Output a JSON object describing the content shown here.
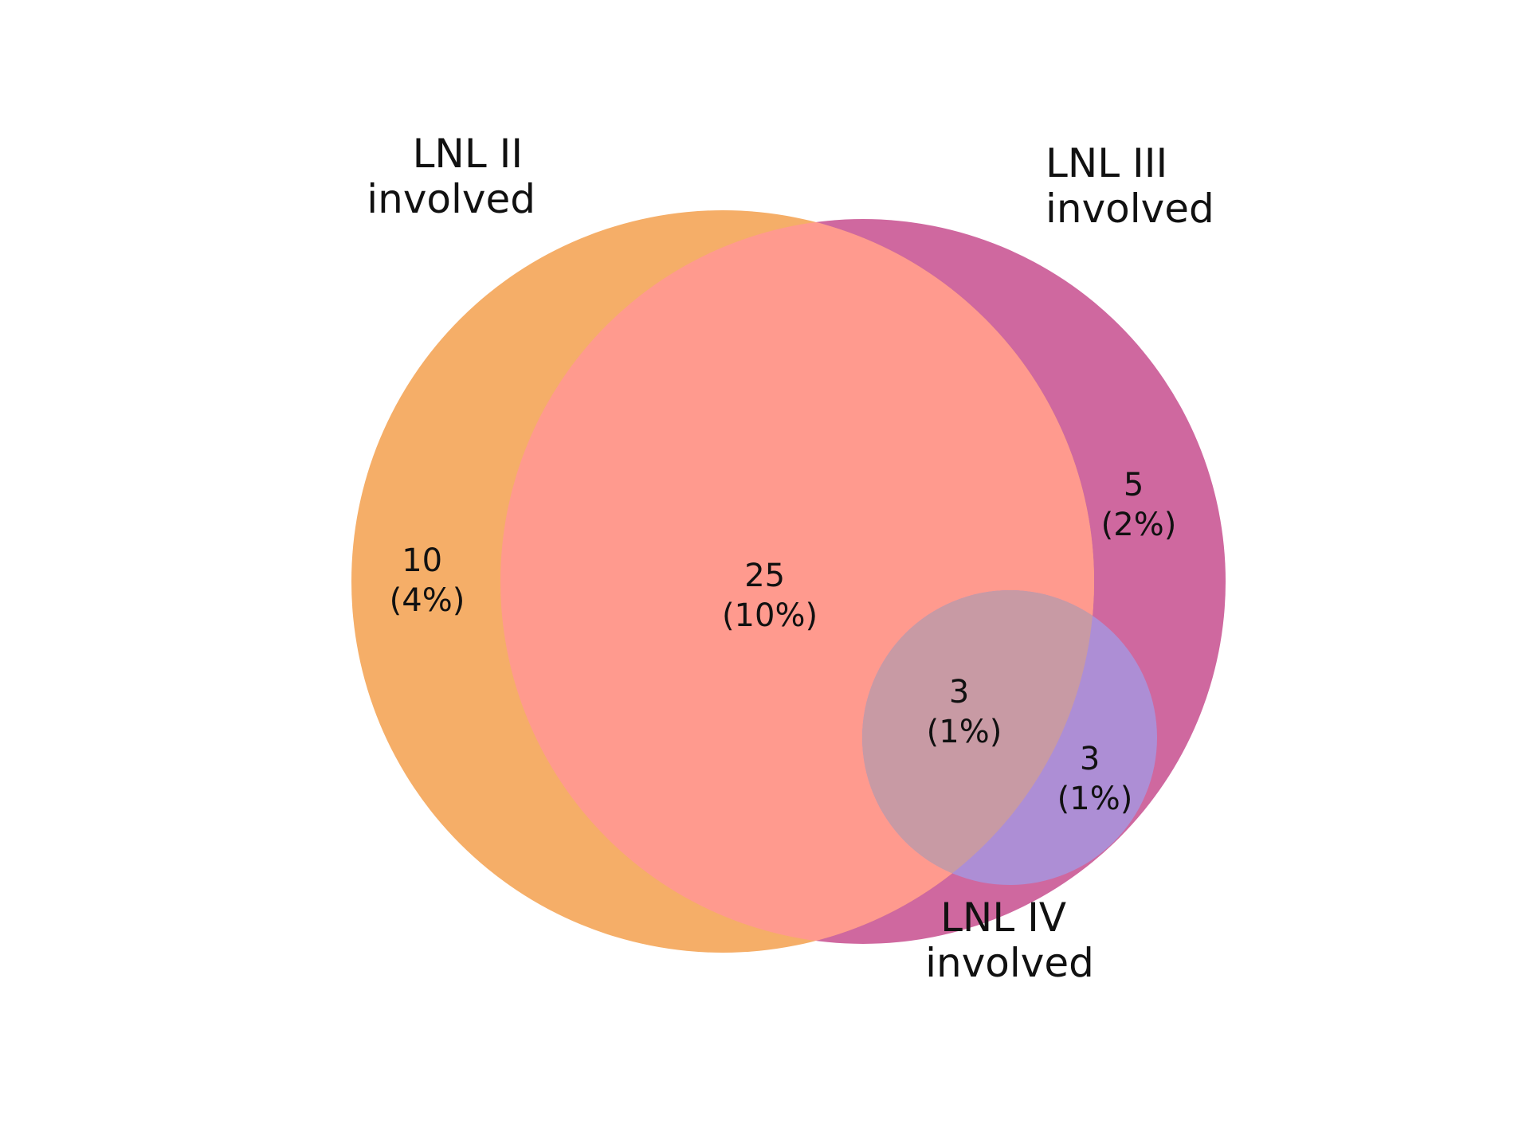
{
  "colors": {
    "lnl_ii_only": "#f5ae68",
    "lnl_ii_and_iii": "#ff9a8e",
    "lnl_iii_only": "#cf689f",
    "lnl_ii_iii_iv": "#c89aa4",
    "lnl_iii_and_iv": "#ad8ed5",
    "text": "#111111"
  },
  "sets": {
    "lnl_ii": {
      "line1": "LNL II",
      "line2": "involved"
    },
    "lnl_iii": {
      "line1": "LNL III",
      "line2": "involved"
    },
    "lnl_iv": {
      "line1": "LNL IV",
      "line2": "involved"
    }
  },
  "regions": {
    "ii_only": {
      "count": "10",
      "percent": "(4%)"
    },
    "ii_iii": {
      "count": "25",
      "percent": "(10%)"
    },
    "iii_only": {
      "count": "5",
      "percent": "(2%)"
    },
    "ii_iii_iv": {
      "count": "3",
      "percent": "(1%)"
    },
    "iii_iv": {
      "count": "3",
      "percent": "(1%)"
    }
  }
}
